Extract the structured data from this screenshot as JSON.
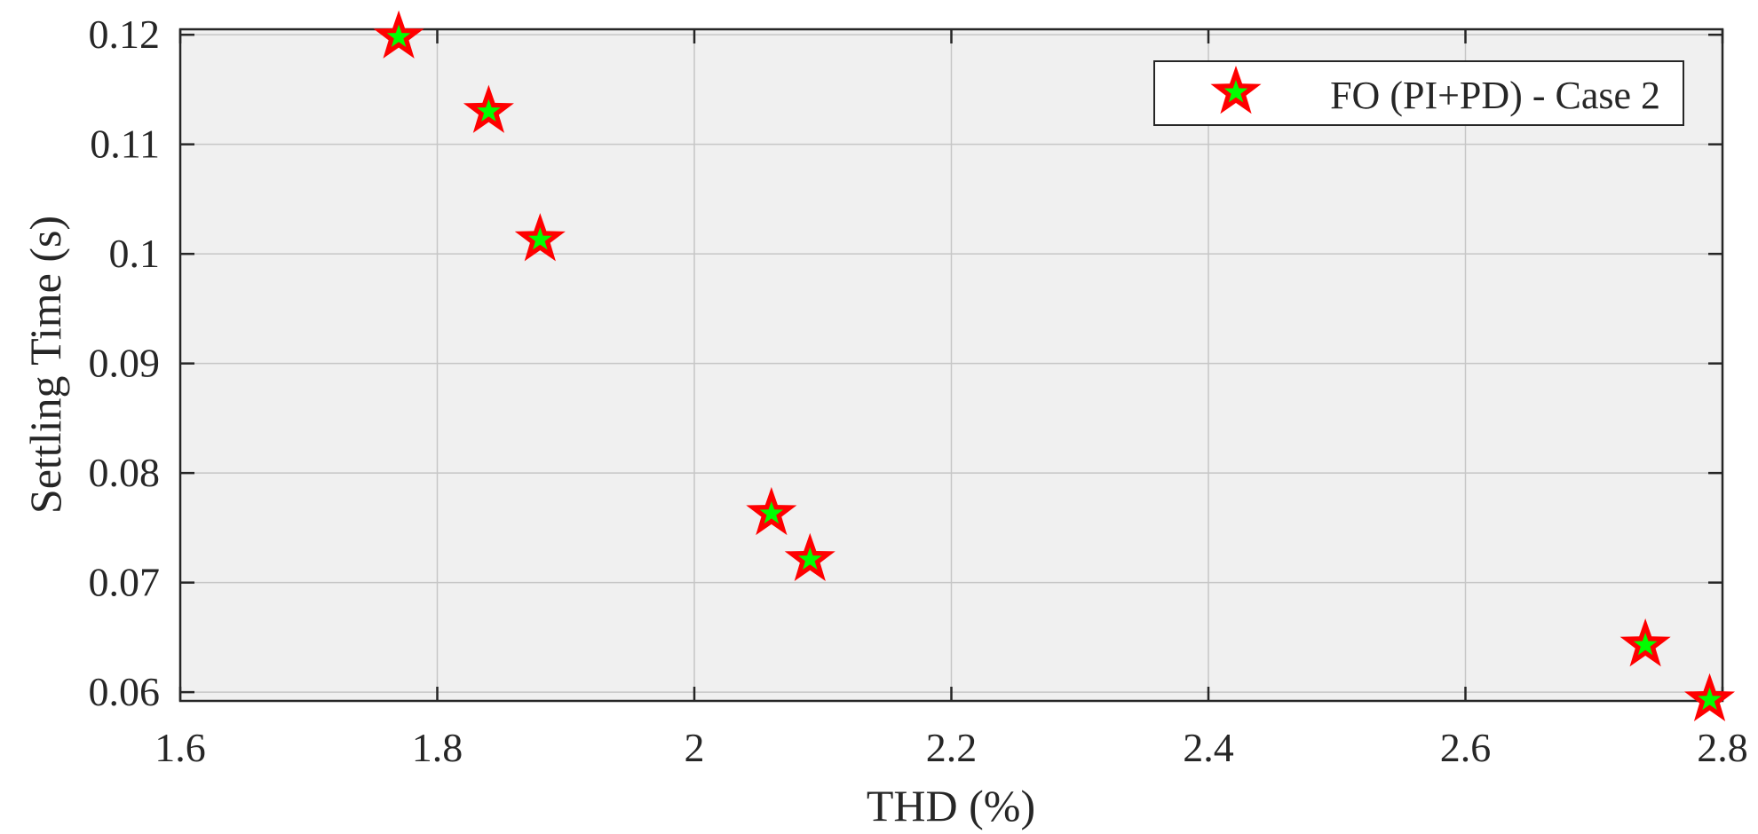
{
  "chart_data": {
    "type": "scatter",
    "xlabel": "THD (%)",
    "ylabel": "Settling Time (s)",
    "xlim": [
      1.6,
      2.8
    ],
    "ylim": [
      0.0592,
      0.1205
    ],
    "xticks": [
      1.6,
      1.8,
      2.0,
      2.2,
      2.4,
      2.6,
      2.8
    ],
    "xtick_labels": [
      "1.6",
      "1.8",
      "2",
      "2.2",
      "2.4",
      "2.6",
      "2.8"
    ],
    "yticks": [
      0.06,
      0.07,
      0.08,
      0.09,
      0.1,
      0.11,
      0.12
    ],
    "ytick_labels": [
      "0.06",
      "0.07",
      "0.08",
      "0.09",
      "0.1",
      "0.11",
      "0.12"
    ],
    "grid": true,
    "legend_position": "top-right",
    "series": [
      {
        "name": "FO (PI+PD) - Case 2",
        "marker": "star",
        "edge_color": "#ff0000",
        "face_color": "#00ff00",
        "points": [
          {
            "x": 1.77,
            "y": 0.1198
          },
          {
            "x": 1.84,
            "y": 0.113
          },
          {
            "x": 1.88,
            "y": 0.1013
          },
          {
            "x": 2.06,
            "y": 0.0763
          },
          {
            "x": 2.09,
            "y": 0.0721
          },
          {
            "x": 2.74,
            "y": 0.0643
          },
          {
            "x": 2.79,
            "y": 0.0593
          }
        ]
      }
    ]
  }
}
